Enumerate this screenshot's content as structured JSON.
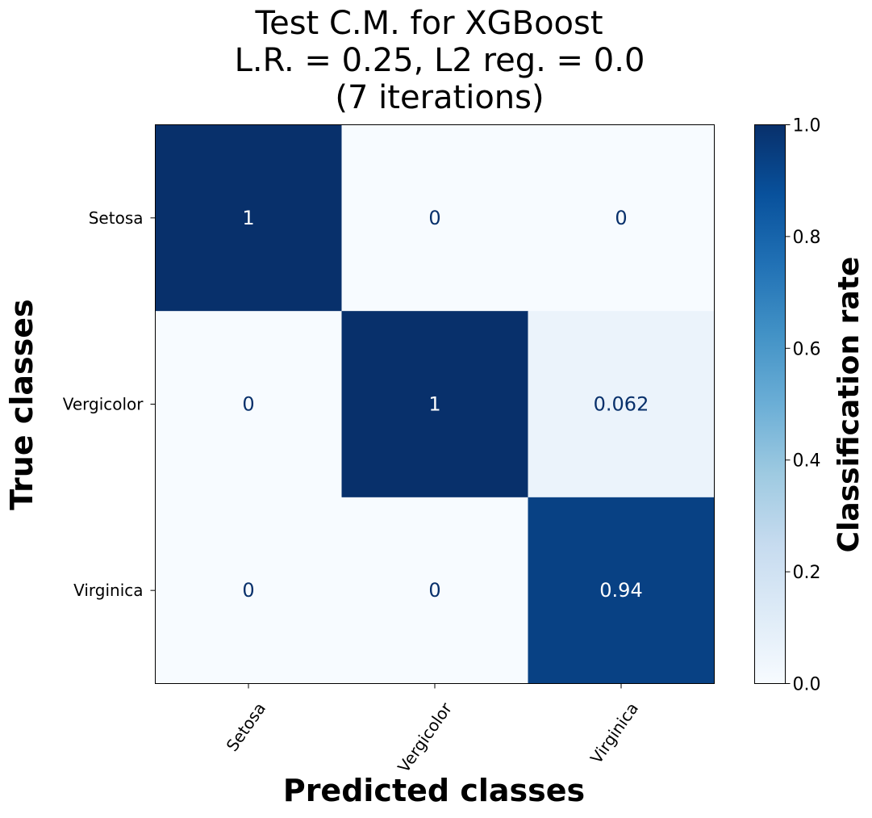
{
  "chart_data": {
    "type": "heatmap",
    "title_lines": [
      "Test C.M. for XGBoost",
      "L.R. = 0.25, L2 reg. = 0.0",
      "(7 iterations)"
    ],
    "xlabel": "Predicted classes",
    "ylabel": "True classes",
    "x_categories": [
      "Setosa",
      "Vergicolor",
      "Virginica"
    ],
    "y_categories": [
      "Setosa",
      "Vergicolor",
      "Virginica"
    ],
    "values": [
      [
        1,
        0,
        0
      ],
      [
        0,
        1,
        0.0625
      ],
      [
        0,
        0,
        0.9375
      ]
    ],
    "cell_labels": [
      [
        "1",
        "0",
        "0"
      ],
      [
        "0",
        "1",
        "0.062"
      ],
      [
        "0",
        "0",
        "0.94"
      ]
    ],
    "colorbar": {
      "label": "Classification rate",
      "range": [
        0,
        1
      ],
      "ticks": [
        0.0,
        0.2,
        0.4,
        0.6,
        0.8,
        1.0
      ],
      "tick_labels": [
        "0.0",
        "0.2",
        "0.4",
        "0.6",
        "0.8",
        "1.0"
      ],
      "colormap": "Blues",
      "low_color": "#f7fbff",
      "high_color": "#08306b"
    },
    "grid": false,
    "legend": "none"
  }
}
